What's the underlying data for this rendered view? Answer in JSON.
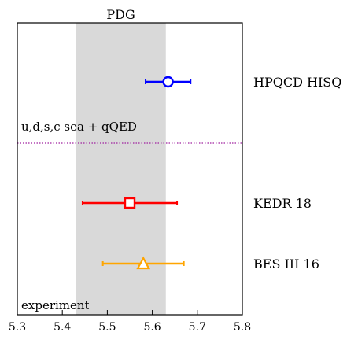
{
  "chart_data": {
    "type": "scatter",
    "xlim": [
      5.3,
      5.8
    ],
    "x_ticks": [
      "5.3",
      "5.4",
      "5.5",
      "5.6",
      "5.7",
      "5.8"
    ],
    "grid": false,
    "band": {
      "label": "PDG",
      "x_min": 5.43,
      "x_max": 5.63,
      "color": "#d9d9d9"
    },
    "points": [
      {
        "label": "HPQCD HISQ",
        "x": 5.635,
        "err_low": 0.05,
        "err_high": 0.05,
        "marker": "circle",
        "color": "#0000ff"
      },
      {
        "label": "KEDR 18",
        "x": 5.55,
        "err_low": 0.105,
        "err_high": 0.105,
        "marker": "square",
        "color": "#ff0000"
      },
      {
        "label": "BES III 16",
        "x": 5.58,
        "err_low": 0.09,
        "err_high": 0.09,
        "marker": "triangle",
        "color": "#ffa500"
      }
    ],
    "separator": {
      "label": "u,d,s,c sea + qQED",
      "color": "#a020a0"
    },
    "section_label": "experiment"
  }
}
